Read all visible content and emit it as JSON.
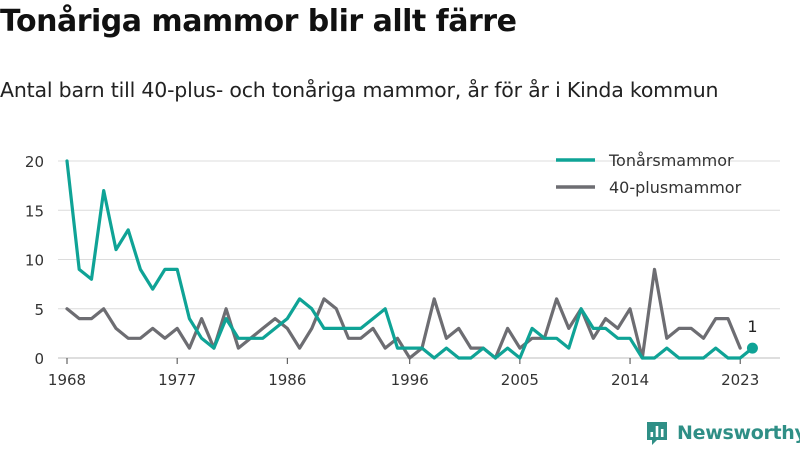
{
  "page": {
    "title": "Tonåriga mammor blir allt färre",
    "subtitle": "Antal barn till 40-plus- och tonåriga mammor, år för år i Kinda kommun"
  },
  "brand": {
    "name": "Newsworthy",
    "logo_icon": "bar-chart-logo-icon",
    "color": "#2f8f86"
  },
  "chart_data": {
    "type": "line",
    "title": "Tonåriga mammor blir allt färre",
    "subtitle": "Antal barn till 40-plus- och tonåriga mammor, år för år i Kinda kommun",
    "x": [
      1968,
      1969,
      1970,
      1971,
      1972,
      1973,
      1974,
      1975,
      1976,
      1977,
      1978,
      1979,
      1980,
      1981,
      1982,
      1983,
      1984,
      1985,
      1986,
      1987,
      1988,
      1989,
      1990,
      1991,
      1992,
      1993,
      1994,
      1995,
      1996,
      1997,
      1998,
      1999,
      2000,
      2001,
      2002,
      2003,
      2004,
      2005,
      2006,
      2007,
      2008,
      2009,
      2010,
      2011,
      2012,
      2013,
      2014,
      2015,
      2016,
      2017,
      2018,
      2019,
      2020,
      2021,
      2022,
      2023,
      2024
    ],
    "xlim": [
      1966,
      2029
    ],
    "ylim": [
      0,
      20
    ],
    "x_ticks": [
      1968,
      1977,
      1986,
      1996,
      2005,
      2014,
      2023
    ],
    "y_ticks": [
      0,
      5,
      10,
      15,
      20
    ],
    "grid": "horizontal",
    "legend_position": "top-right",
    "series": [
      {
        "name": "Tonårsmammor",
        "color": "#0fa396",
        "values": [
          20,
          9,
          8,
          17,
          11,
          13,
          9,
          7,
          9,
          9,
          4,
          2,
          1,
          4,
          2,
          2,
          2,
          3,
          4,
          6,
          5,
          3,
          3,
          3,
          3,
          4,
          5,
          1,
          1,
          1,
          0,
          1,
          0,
          0,
          1,
          0,
          1,
          0,
          3,
          2,
          2,
          1,
          5,
          3,
          3,
          2,
          2,
          0,
          0,
          1,
          0,
          0,
          0,
          1,
          0,
          0,
          1
        ]
      },
      {
        "name": "40-plusmammor",
        "color": "#6d6d72",
        "values": [
          5,
          4,
          4,
          5,
          3,
          2,
          2,
          3,
          2,
          3,
          1,
          4,
          1,
          5,
          1,
          2,
          3,
          4,
          3,
          1,
          3,
          6,
          5,
          2,
          2,
          3,
          1,
          2,
          0,
          1,
          6,
          2,
          3,
          1,
          1,
          0,
          3,
          1,
          2,
          2,
          6,
          3,
          5,
          2,
          4,
          3,
          5,
          0,
          9,
          2,
          3,
          3,
          2,
          4,
          4,
          1,
          null
        ]
      }
    ],
    "end_label": {
      "series": "Tonårsmammor",
      "year": 2024,
      "value": "1"
    }
  }
}
